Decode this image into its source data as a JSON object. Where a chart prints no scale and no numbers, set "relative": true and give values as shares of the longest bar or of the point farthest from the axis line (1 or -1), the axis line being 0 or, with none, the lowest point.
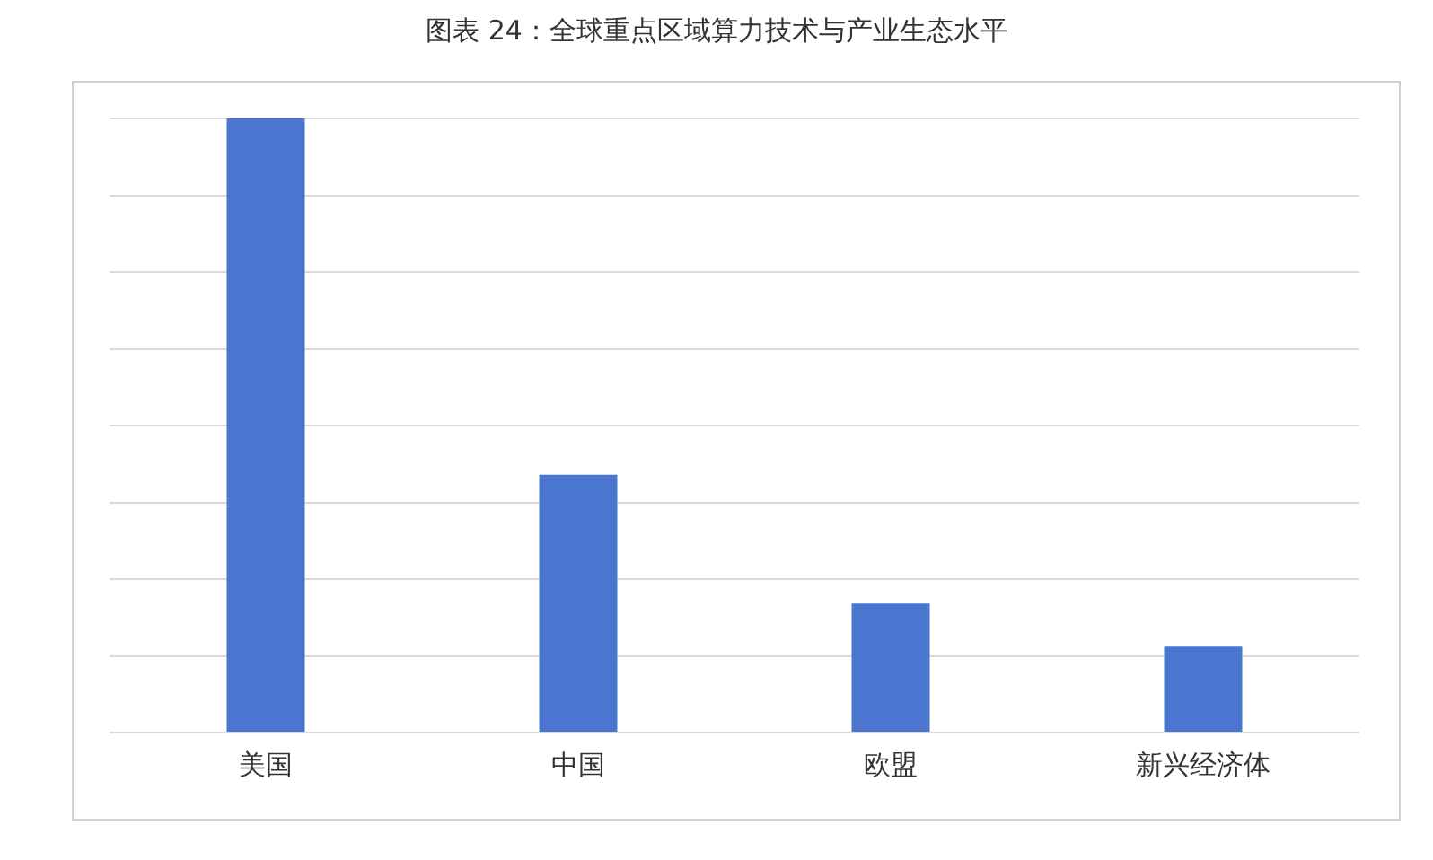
{
  "chart_data": {
    "type": "bar",
    "title": "图表 24：全球重点区域算力技术与产业生态水平",
    "categories": [
      "美国",
      "中国",
      "欧盟",
      "新兴经济体"
    ],
    "values": [
      1,
      0.42,
      0.21,
      0.14
    ],
    "color": "#4a76d0",
    "relative": true,
    "grid": "y",
    "legend": false
  }
}
